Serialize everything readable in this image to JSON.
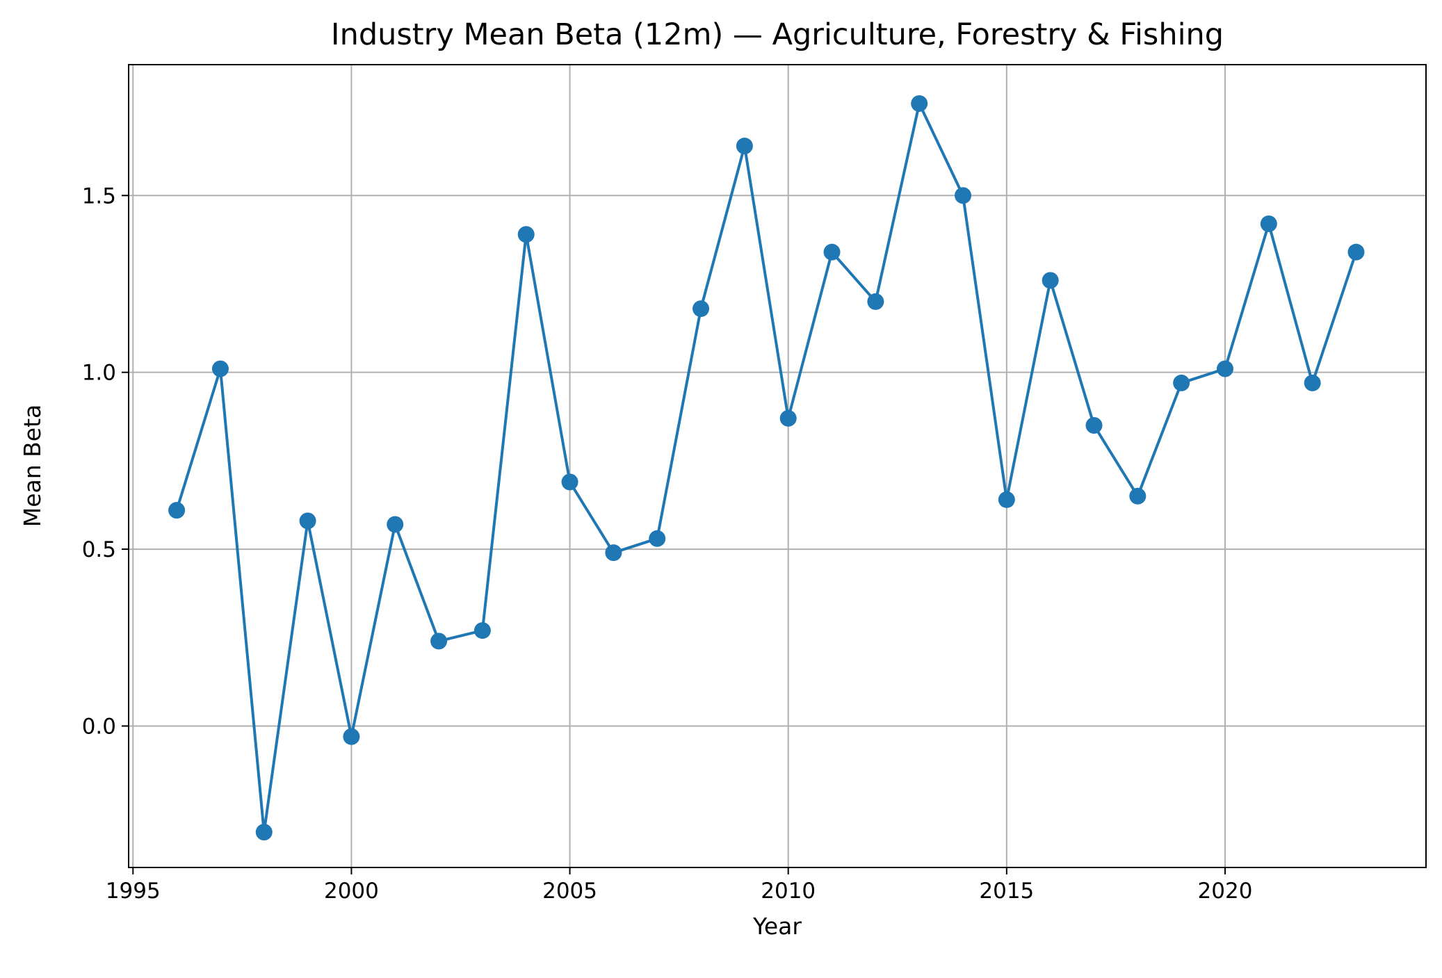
{
  "chart_data": {
    "type": "line",
    "title": "Industry Mean Beta (12m) — Agriculture, Forestry & Fishing",
    "xlabel": "Year",
    "ylabel": "Mean Beta",
    "xlim": [
      1994.9,
      2024.6
    ],
    "ylim": [
      -0.4,
      1.87
    ],
    "xticks": [
      1995,
      2000,
      2005,
      2010,
      2015,
      2020
    ],
    "yticks": [
      0.0,
      0.5,
      1.0,
      1.5
    ],
    "ytick_labels": [
      "0.0",
      "0.5",
      "1.0",
      "1.5"
    ],
    "grid": true,
    "color": "#1f77b4",
    "series": [
      {
        "x": [
          1996,
          1997,
          1998,
          1999,
          2000,
          2001,
          2002,
          2003,
          2004,
          2005,
          2006,
          2007,
          2008,
          2009,
          2010,
          2011,
          2012,
          2013,
          2014,
          2015,
          2016,
          2017,
          2018,
          2019,
          2020,
          2021,
          2022,
          2023
        ],
        "y": [
          0.61,
          1.01,
          -0.3,
          0.58,
          -0.03,
          0.57,
          0.24,
          0.27,
          1.39,
          0.69,
          0.49,
          0.53,
          1.18,
          1.64,
          0.87,
          1.34,
          1.2,
          1.76,
          1.5,
          0.64,
          1.26,
          0.85,
          0.65,
          0.97,
          1.01,
          1.42,
          0.97,
          1.34
        ]
      }
    ]
  }
}
